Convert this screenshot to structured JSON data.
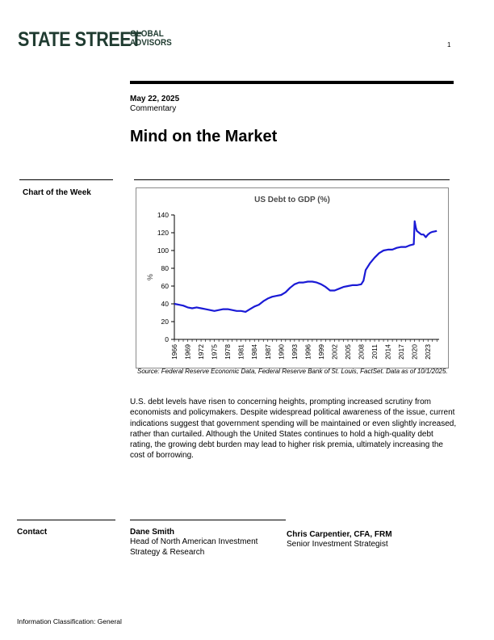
{
  "header": {
    "logo_main": "STATE STREET",
    "logo_sub_1": "GLOBAL",
    "logo_sub_2": "ADVISORS",
    "page_number": "1"
  },
  "meta": {
    "date": "May 22, 2025",
    "category": "Commentary",
    "title": "Mind on the Market"
  },
  "chart_section": {
    "label": "Chart of the Week",
    "source": "Source: Federal Reserve Economic Data, Federal Reserve Bank of St. Louis, FactSet. Data as of 10/1/2025."
  },
  "body": {
    "paragraph": "U.S. debt levels have risen to concerning heights, prompting increased scrutiny from economists and policymakers. Despite widespread political awareness of the issue, current indications suggest that government spending will be maintained or even slightly increased, rather than curtailed. Although the United States continues to hold a high-quality debt rating, the growing debt burden may lead to higher risk premia, ultimately increasing the cost of borrowing."
  },
  "contact": {
    "label": "Contact",
    "people": [
      {
        "name": "Dane Smith",
        "role_1": "Head of North American Investment",
        "role_2": "Strategy & Research"
      },
      {
        "name": "Chris Carpentier, CFA, FRM",
        "role_1": "Senior Investment Strategist",
        "role_2": ""
      }
    ]
  },
  "footer": {
    "classification": "Information Classification: General"
  },
  "chart_data": {
    "type": "line",
    "title": "US Debt to GDP (%)",
    "ylabel": "%",
    "xlabel": "",
    "ylim": [
      0,
      140
    ],
    "xlim": [
      1966,
      2025.5
    ],
    "yticks": [
      0,
      20,
      40,
      60,
      80,
      100,
      120,
      140
    ],
    "xtick_labels": [
      "1966",
      "1969",
      "1972",
      "1975",
      "1978",
      "1981",
      "1984",
      "1987",
      "1990",
      "1993",
      "1996",
      "1999",
      "2002",
      "2005",
      "2008",
      "2011",
      "2014",
      "2017",
      "2020",
      "2023"
    ],
    "grid": false,
    "line_color": "#1a1ad6",
    "series": [
      {
        "x": [
          1966,
          1967,
          1968,
          1969,
          1970,
          1971,
          1972,
          1973,
          1974,
          1975,
          1976,
          1977,
          1978,
          1979,
          1980,
          1981,
          1982,
          1983,
          1984,
          1985,
          1986,
          1987,
          1988,
          1989,
          1990,
          1991,
          1992,
          1993,
          1994,
          1995,
          1996,
          1997,
          1998,
          1999,
          2000,
          2001,
          2002,
          2003,
          2004,
          2005,
          2006,
          2007,
          2008,
          2008.5,
          2009,
          2010,
          2011,
          2012,
          2013,
          2014,
          2015,
          2016,
          2017,
          2018,
          2019,
          2019.8,
          2020.0,
          2020.25,
          2020.5,
          2021,
          2021.5,
          2022,
          2022.5,
          2023,
          2023.5,
          2024,
          2025
        ],
        "y": [
          40,
          39,
          38,
          36,
          35,
          36,
          35,
          34,
          33,
          32,
          33,
          34,
          34,
          33,
          32,
          32,
          31,
          34,
          37,
          39,
          43,
          46,
          48,
          49,
          50,
          53,
          58,
          62,
          64,
          64,
          65,
          65,
          64,
          62,
          59,
          55,
          55,
          57,
          59,
          60,
          61,
          61,
          62,
          66,
          78,
          86,
          92,
          97,
          100,
          101,
          101,
          103,
          104,
          104,
          106,
          107,
          133,
          126,
          122,
          120,
          118,
          118,
          115,
          118,
          120,
          121,
          122
        ]
      }
    ]
  }
}
